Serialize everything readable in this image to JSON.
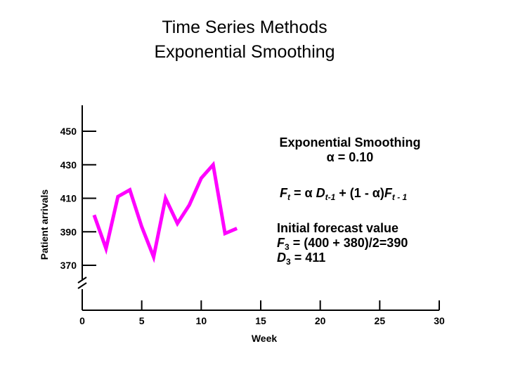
{
  "title_line1": "Time Series Methods",
  "title_line2": "Exponential Smoothing",
  "chart_data": {
    "type": "line",
    "xlabel": "Week",
    "ylabel": "Patient arrivals",
    "xlim": [
      0,
      30
    ],
    "ylim": [
      360,
      450
    ],
    "x_ticks": [
      "0",
      "5",
      "10",
      "15",
      "20",
      "25",
      "30"
    ],
    "y_ticks": [
      "450",
      "430",
      "410",
      "390",
      "370"
    ],
    "axis_break": true,
    "grid": false,
    "color": "#ff00ff",
    "series": [
      {
        "x": [
          1,
          2,
          3,
          4,
          5,
          6,
          7,
          8,
          9,
          10,
          11,
          12,
          13
        ],
        "values": [
          400,
          380,
          411,
          415,
          393,
          375,
          410,
          395,
          406,
          422,
          430,
          389,
          392
        ]
      }
    ]
  },
  "annotations": {
    "method_name": "Exponential Smoothing",
    "alpha_prefix": "α",
    "alpha_value": "= 0.10",
    "formula": {
      "f": "F",
      "t": "t",
      "eq_alpha": "= α",
      "d": "D",
      "t_minus_1": "t-1",
      "mid": "+ (1 - α)",
      "t_minus_1_b": "t - 1"
    },
    "initial_title": "Initial forecast value",
    "f3_sub": "3",
    "f3_rest": "= (400 + 380)/2=390",
    "d3_sub": "3",
    "d3_rest": "= 411"
  }
}
